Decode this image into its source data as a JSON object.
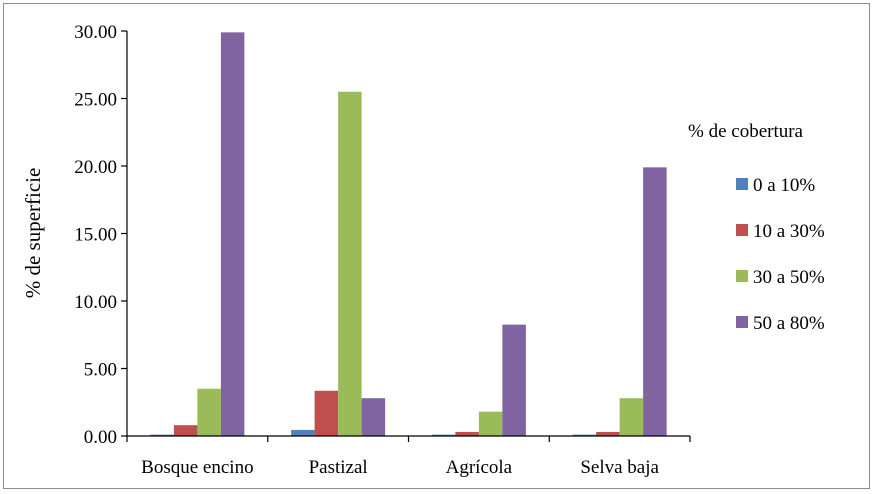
{
  "chart_data": {
    "type": "bar",
    "title": "",
    "xlabel": "",
    "ylabel": "% de superficie",
    "ylim": [
      0,
      30
    ],
    "yticks": [
      "0.00",
      "5.00",
      "10.00",
      "15.00",
      "20.00",
      "25.00",
      "30.00"
    ],
    "categories": [
      "Bosque encino",
      "Pastizal",
      "Agrícola",
      "Selva baja"
    ],
    "legend_title": "% de cobertura",
    "legend_position": "right",
    "series": [
      {
        "name": "0 a 10%",
        "color": "#4f81bd",
        "values": [
          0.1,
          0.45,
          0.1,
          0.1
        ]
      },
      {
        "name": "10 a 30%",
        "color": "#c0504d",
        "values": [
          0.8,
          3.35,
          0.3,
          0.3
        ]
      },
      {
        "name": "30 a 50%",
        "color": "#9bbb59",
        "values": [
          3.5,
          25.5,
          1.8,
          2.8
        ]
      },
      {
        "name": "50 a 80%",
        "color": "#8064a2",
        "values": [
          29.9,
          2.8,
          8.25,
          19.9
        ]
      }
    ]
  }
}
